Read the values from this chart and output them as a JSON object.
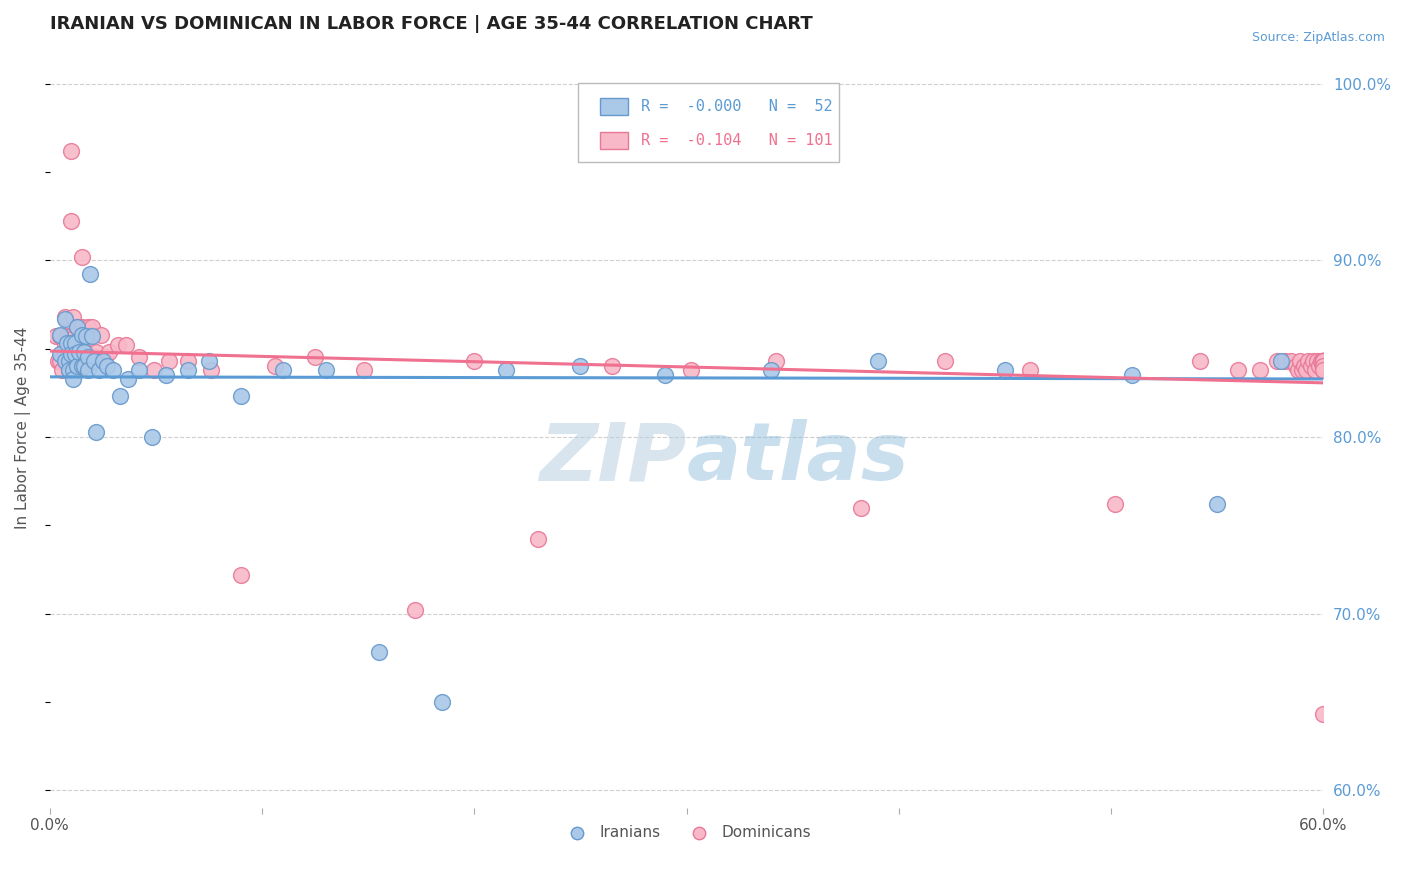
{
  "title": "IRANIAN VS DOMINICAN IN LABOR FORCE | AGE 35-44 CORRELATION CHART",
  "source_text": "Source: ZipAtlas.com",
  "ylabel": "In Labor Force | Age 35-44",
  "xlim": [
    0.0,
    0.6
  ],
  "ylim": [
    0.59,
    1.02
  ],
  "xticks": [
    0.0,
    0.1,
    0.2,
    0.3,
    0.4,
    0.5,
    0.6
  ],
  "xticklabels": [
    "0.0%",
    "",
    "",
    "",
    "",
    "",
    "60.0%"
  ],
  "yticks_right": [
    0.6,
    0.7,
    0.8,
    0.9,
    1.0
  ],
  "yticklabels_right": [
    "60.0%",
    "70.0%",
    "80.0%",
    "90.0%",
    "100.0%"
  ],
  "legend_iranian_r": "-0.000",
  "legend_iranian_n": "52",
  "legend_dominican_r": "-0.104",
  "legend_dominican_n": "101",
  "iranian_color": "#aac8e8",
  "dominican_color": "#f8b8c8",
  "iranian_edge": "#6699cc",
  "dominican_edge": "#e87898",
  "trendline_iranian_color": "#5b9bd5",
  "trendline_dominican_color": "#f07090",
  "watermark_color": "#c0d4e8",
  "background_color": "#ffffff",
  "iranians_x": [
    0.005,
    0.005,
    0.007,
    0.007,
    0.008,
    0.009,
    0.009,
    0.01,
    0.01,
    0.011,
    0.011,
    0.012,
    0.012,
    0.013,
    0.013,
    0.014,
    0.015,
    0.015,
    0.016,
    0.016,
    0.017,
    0.018,
    0.018,
    0.019,
    0.02,
    0.021,
    0.022,
    0.023,
    0.025,
    0.027,
    0.03,
    0.033,
    0.037,
    0.042,
    0.048,
    0.055,
    0.065,
    0.075,
    0.09,
    0.11,
    0.13,
    0.155,
    0.185,
    0.215,
    0.25,
    0.29,
    0.34,
    0.39,
    0.45,
    0.51,
    0.55,
    0.58
  ],
  "iranians_y": [
    0.847,
    0.858,
    0.843,
    0.867,
    0.853,
    0.843,
    0.838,
    0.853,
    0.847,
    0.838,
    0.833,
    0.853,
    0.847,
    0.84,
    0.862,
    0.848,
    0.84,
    0.858,
    0.848,
    0.84,
    0.857,
    0.845,
    0.838,
    0.892,
    0.857,
    0.843,
    0.803,
    0.838,
    0.843,
    0.84,
    0.838,
    0.823,
    0.833,
    0.838,
    0.8,
    0.835,
    0.838,
    0.843,
    0.823,
    0.838,
    0.838,
    0.678,
    0.65,
    0.838,
    0.84,
    0.835,
    0.838,
    0.843,
    0.838,
    0.835,
    0.762,
    0.843
  ],
  "dominicans_x": [
    0.003,
    0.004,
    0.005,
    0.005,
    0.006,
    0.007,
    0.007,
    0.008,
    0.008,
    0.009,
    0.009,
    0.009,
    0.01,
    0.01,
    0.01,
    0.011,
    0.011,
    0.012,
    0.012,
    0.012,
    0.013,
    0.013,
    0.013,
    0.014,
    0.014,
    0.015,
    0.015,
    0.016,
    0.016,
    0.017,
    0.017,
    0.018,
    0.018,
    0.019,
    0.019,
    0.02,
    0.021,
    0.022,
    0.024,
    0.026,
    0.028,
    0.032,
    0.036,
    0.042,
    0.049,
    0.056,
    0.065,
    0.076,
    0.09,
    0.106,
    0.125,
    0.148,
    0.172,
    0.2,
    0.23,
    0.265,
    0.302,
    0.342,
    0.382,
    0.422,
    0.462,
    0.502,
    0.542,
    0.56,
    0.57,
    0.578,
    0.582,
    0.585,
    0.587,
    0.588,
    0.589,
    0.59,
    0.591,
    0.592,
    0.593,
    0.594,
    0.595,
    0.596,
    0.597,
    0.598,
    0.599,
    0.6,
    0.6,
    0.6,
    0.6,
    0.6,
    0.6,
    0.6,
    0.6,
    0.6,
    0.6,
    0.6,
    0.6,
    0.6,
    0.6,
    0.6,
    0.6,
    0.6,
    0.6,
    0.6,
    0.6
  ],
  "dominicans_y": [
    0.857,
    0.843,
    0.857,
    0.843,
    0.838,
    0.868,
    0.852,
    0.843,
    0.857,
    0.848,
    0.843,
    0.838,
    0.962,
    0.922,
    0.857,
    0.868,
    0.852,
    0.843,
    0.857,
    0.848,
    0.843,
    0.862,
    0.852,
    0.843,
    0.838,
    0.902,
    0.862,
    0.848,
    0.857,
    0.848,
    0.843,
    0.862,
    0.845,
    0.858,
    0.843,
    0.862,
    0.845,
    0.848,
    0.858,
    0.845,
    0.848,
    0.852,
    0.852,
    0.845,
    0.838,
    0.843,
    0.843,
    0.838,
    0.722,
    0.84,
    0.845,
    0.838,
    0.702,
    0.843,
    0.742,
    0.84,
    0.838,
    0.843,
    0.76,
    0.843,
    0.838,
    0.762,
    0.843,
    0.838,
    0.838,
    0.843,
    0.843,
    0.843,
    0.84,
    0.838,
    0.843,
    0.838,
    0.84,
    0.838,
    0.843,
    0.84,
    0.843,
    0.838,
    0.843,
    0.84,
    0.843,
    0.843,
    0.84,
    0.838,
    0.843,
    0.843,
    0.84,
    0.843,
    0.84,
    0.843,
    0.84,
    0.843,
    0.843,
    0.843,
    0.84,
    0.838,
    0.843,
    0.843,
    0.84,
    0.838,
    0.643
  ]
}
